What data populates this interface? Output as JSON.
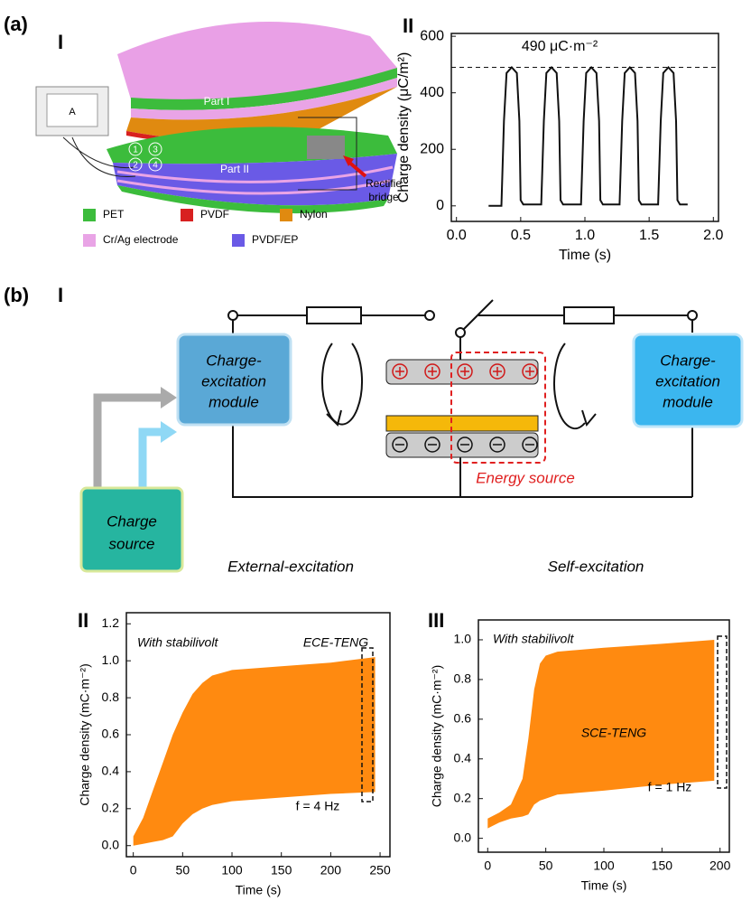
{
  "panel_labels": {
    "a": "(a)",
    "a_I": "I",
    "a_II": "II",
    "b": "(b)",
    "b_I": "I",
    "b_II": "II",
    "b_III": "III"
  },
  "device": {
    "part_1": "Part I",
    "part_2": "Part II",
    "bridge": [
      "Rectifie",
      "bridge"
    ],
    "meter": "A",
    "ports": [
      "1",
      "2",
      "3",
      "4"
    ],
    "legend": [
      {
        "label": "PET",
        "color": "#3cbc3c"
      },
      {
        "label": "PVDF",
        "color": "#d82020"
      },
      {
        "label": "Nylon",
        "color": "#e08a10"
      },
      {
        "label": "Cr/Ag electrode",
        "color": "#e9a4e6"
      },
      {
        "label": "PVDF/EP",
        "color": "#6a5ae6"
      }
    ]
  },
  "circuit": {
    "left_module": [
      "Charge-",
      "excitation",
      "module"
    ],
    "right_module": [
      "Charge-",
      "excitation",
      "module"
    ],
    "charge_source": [
      "Charge",
      "source"
    ],
    "energy_source": "Energy source",
    "external": "External-excitation",
    "self": "Self-excitation"
  },
  "chart_data": [
    {
      "type": "line",
      "color": "#111111",
      "xlabel": "Time (s)",
      "ylabel": "Charge density (μC/m²)",
      "annotation": "490 μC·m⁻²",
      "reference_line": 490,
      "xlim": [
        -0.04,
        2.04
      ],
      "ylim": [
        -55,
        610
      ],
      "xticks": [
        {
          "value": 0,
          "label": "0.0"
        },
        0.5,
        {
          "value": 1,
          "label": "1.0"
        },
        1.5,
        {
          "value": 2,
          "label": "2.0"
        }
      ],
      "yticks": [
        0,
        200,
        400,
        600
      ],
      "x": [
        0.25,
        0.35,
        0.37,
        0.39,
        0.43,
        0.47,
        0.49,
        0.5,
        0.52,
        0.66,
        0.68,
        0.7,
        0.74,
        0.78,
        0.8,
        0.81,
        0.83,
        0.97,
        0.99,
        1.01,
        1.05,
        1.09,
        1.11,
        1.12,
        1.14,
        1.27,
        1.29,
        1.31,
        1.35,
        1.39,
        1.41,
        1.42,
        1.44,
        1.57,
        1.59,
        1.61,
        1.65,
        1.69,
        1.71,
        1.72,
        1.74,
        1.8
      ],
      "y": [
        0,
        0,
        300,
        470,
        490,
        470,
        300,
        20,
        5,
        5,
        300,
        470,
        490,
        470,
        300,
        20,
        5,
        5,
        300,
        470,
        490,
        470,
        300,
        20,
        5,
        5,
        300,
        470,
        490,
        470,
        300,
        20,
        5,
        5,
        300,
        470,
        490,
        470,
        300,
        20,
        5,
        5
      ]
    },
    {
      "type": "area",
      "color": "#ff8a10",
      "xlabel": "Time (s)",
      "ylabel": "Charge density (mC·m⁻²)",
      "annotations": [
        "With stabilivolt",
        "ECE-TENG",
        "f = 4 Hz"
      ],
      "xlim": [
        -7,
        260
      ],
      "ylim": [
        -0.06,
        1.26
      ],
      "xticks": [
        0,
        50,
        100,
        150,
        200,
        250
      ],
      "yticks": [
        {
          "value": 0,
          "label": "0.0"
        },
        0.2,
        0.4,
        0.6,
        0.8,
        {
          "value": 1,
          "label": "1.0"
        },
        1.2
      ],
      "x": [
        0,
        10,
        20,
        30,
        40,
        50,
        60,
        70,
        80,
        100,
        150,
        200,
        245
      ],
      "y_high": [
        0.05,
        0.15,
        0.3,
        0.45,
        0.6,
        0.72,
        0.82,
        0.88,
        0.92,
        0.95,
        0.97,
        0.99,
        1.02
      ],
      "y_low": [
        0,
        0.01,
        0.02,
        0.03,
        0.05,
        0.12,
        0.17,
        0.2,
        0.22,
        0.24,
        0.26,
        0.28,
        0.29
      ]
    },
    {
      "type": "area",
      "color": "#ff8a10",
      "xlabel": "Time (s)",
      "ylabel": "Charge density (mC·m⁻²)",
      "annotations": [
        "With stabilivolt",
        "SCE-TENG",
        "f = 1 Hz"
      ],
      "xlim": [
        -8,
        208
      ],
      "ylim": [
        -0.07,
        1.1
      ],
      "xticks": [
        0,
        50,
        100,
        150,
        200
      ],
      "yticks": [
        {
          "value": 0,
          "label": "0.0"
        },
        0.2,
        0.4,
        0.6,
        0.8,
        {
          "value": 1,
          "label": "1.0"
        }
      ],
      "x": [
        0,
        10,
        20,
        30,
        35,
        40,
        45,
        50,
        60,
        100,
        150,
        195
      ],
      "y_high": [
        0.1,
        0.13,
        0.17,
        0.3,
        0.5,
        0.75,
        0.88,
        0.92,
        0.94,
        0.96,
        0.98,
        1.0
      ],
      "y_low": [
        0.05,
        0.08,
        0.1,
        0.11,
        0.12,
        0.17,
        0.19,
        0.2,
        0.22,
        0.24,
        0.27,
        0.29
      ]
    }
  ]
}
